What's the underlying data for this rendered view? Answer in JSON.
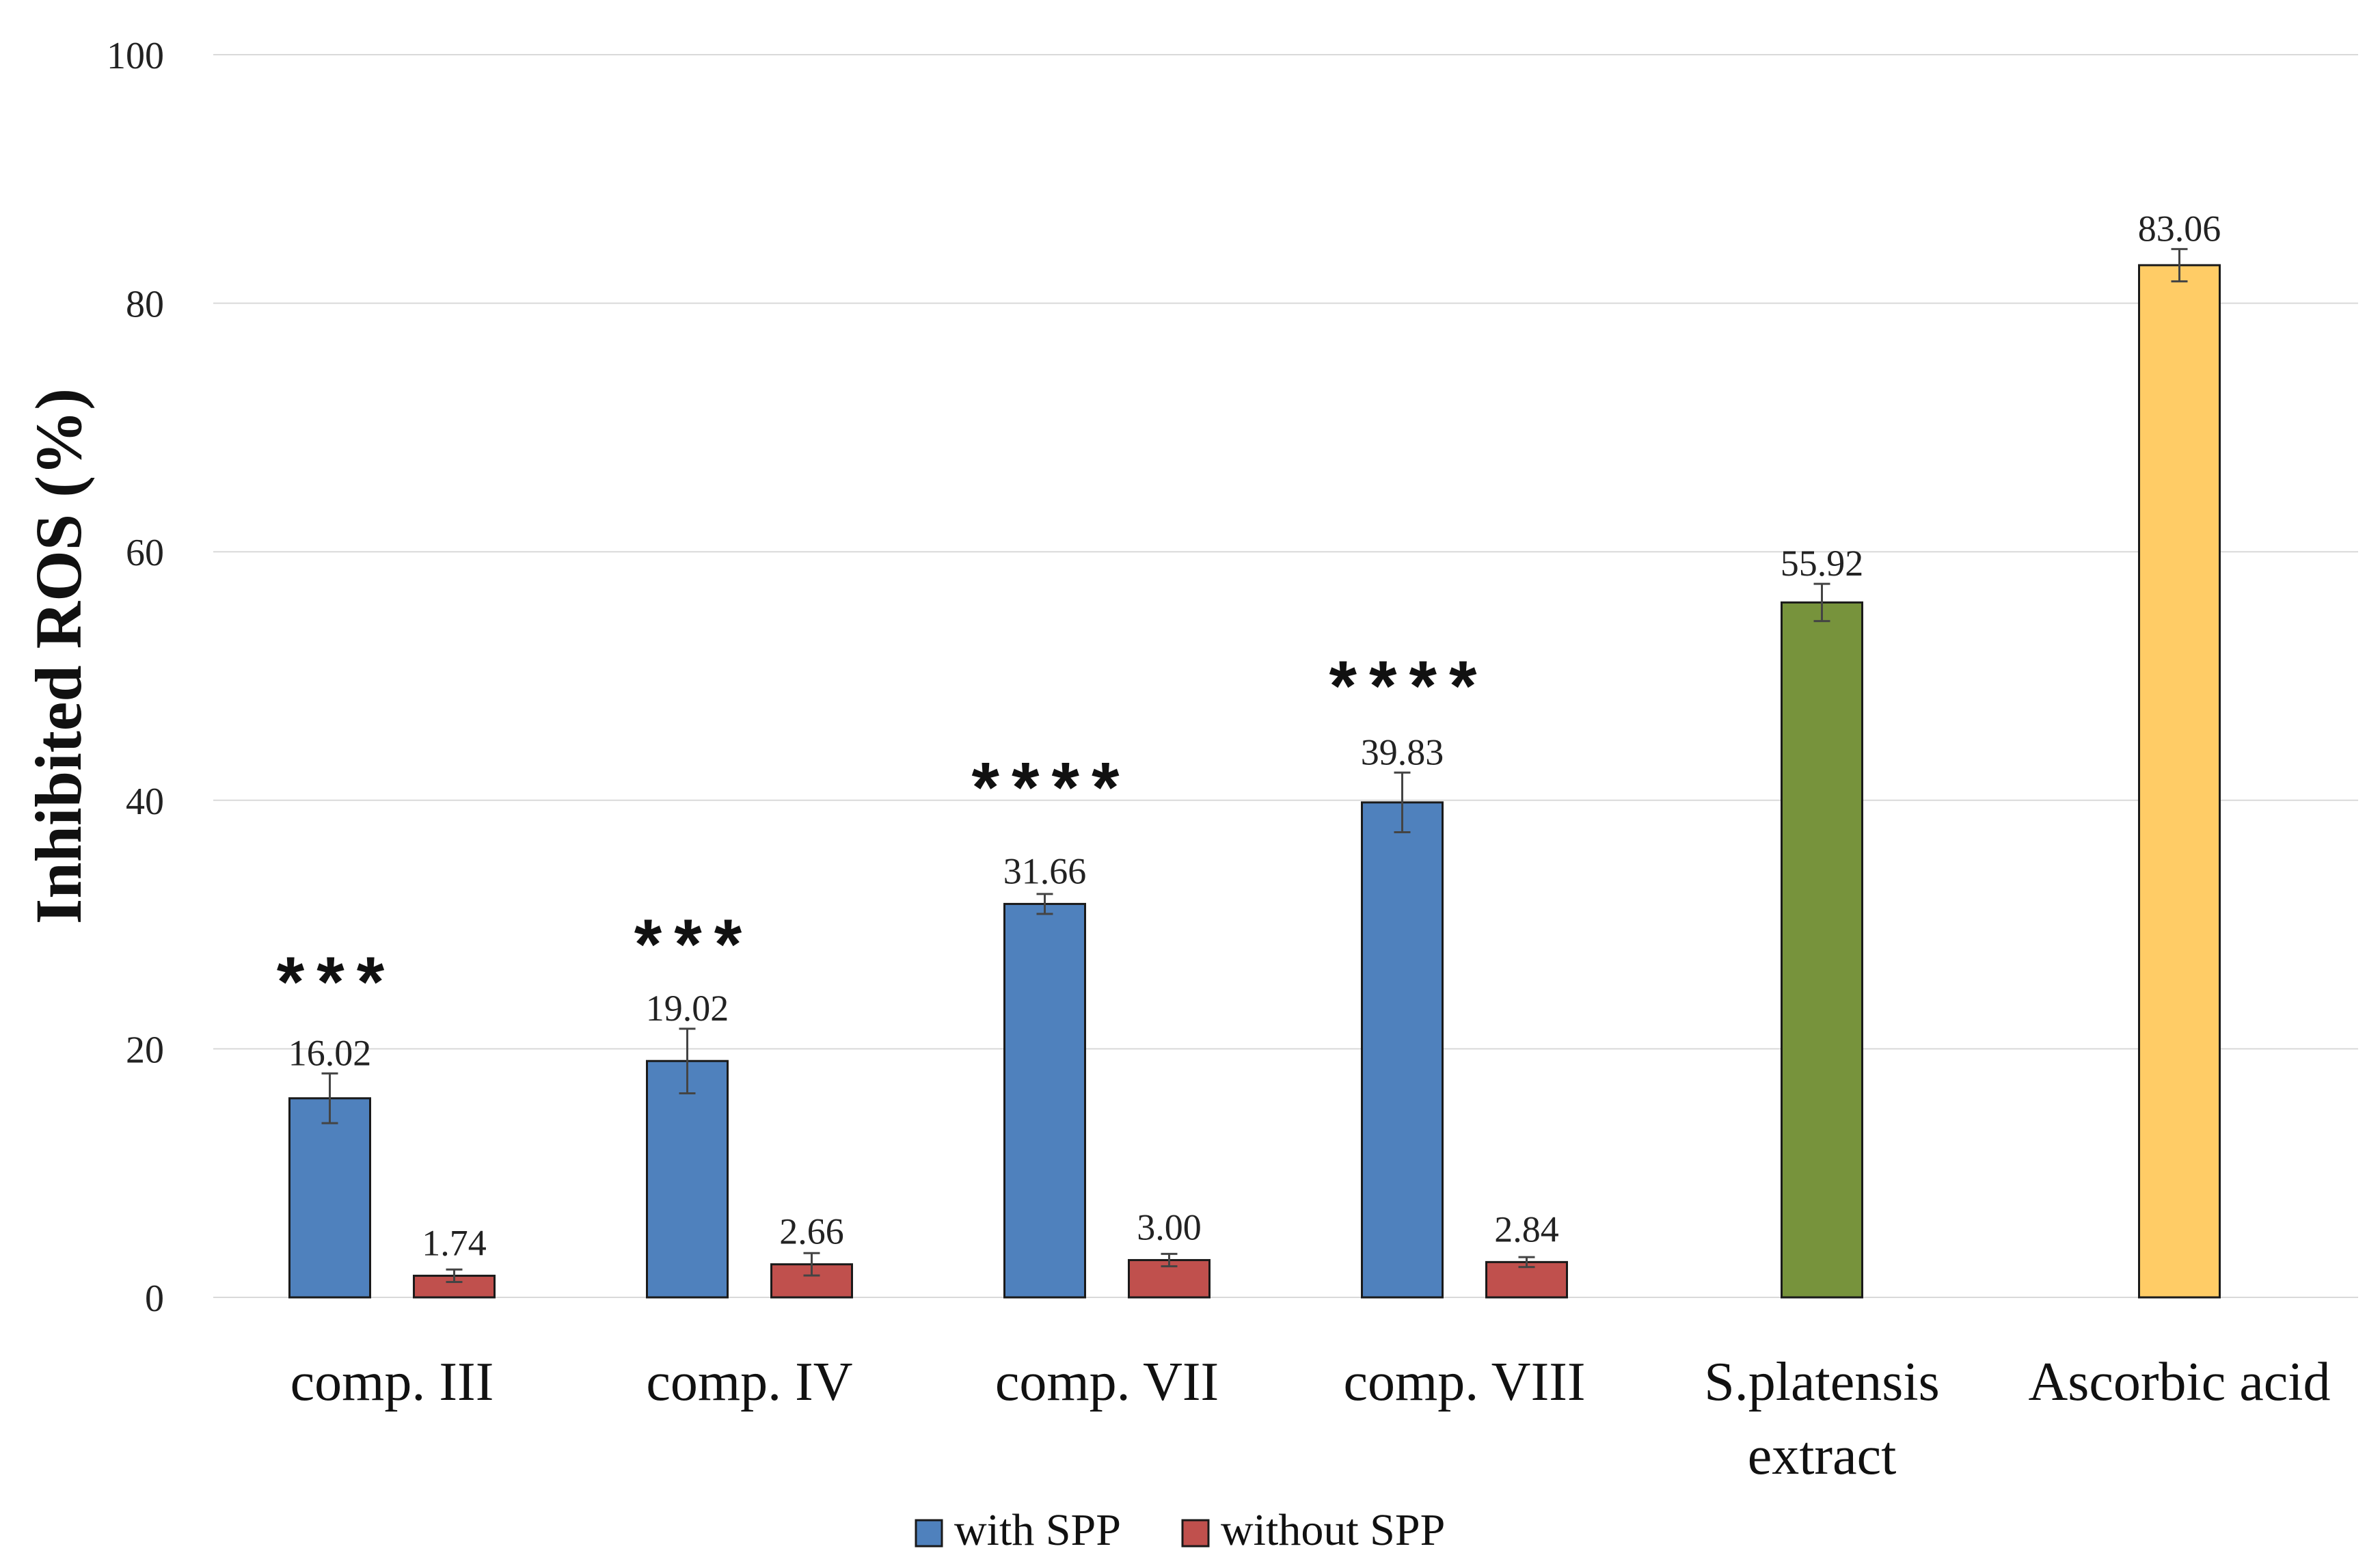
{
  "chart_data": {
    "type": "bar",
    "title": "",
    "xlabel": "",
    "ylabel": "Inhibited ROS (%)",
    "ylim": [
      0,
      100
    ],
    "yticks": [
      0,
      20,
      40,
      60,
      80,
      100
    ],
    "grid": true,
    "legend_position": "bottom",
    "categories": [
      {
        "lines": [
          "comp. III"
        ]
      },
      {
        "lines": [
          "comp. IV"
        ]
      },
      {
        "lines": [
          "comp. VII"
        ]
      },
      {
        "lines": [
          "comp. VIII"
        ]
      },
      {
        "lines": [
          "S.platensis",
          "extract"
        ]
      },
      {
        "lines": [
          "Ascorbic acid"
        ]
      }
    ],
    "series": [
      {
        "name": "with SPP",
        "color": "#4F81BD",
        "values": [
          16.02,
          19.02,
          31.66,
          39.83,
          null,
          null
        ],
        "labels": [
          "16.02",
          "19.02",
          "31.66",
          "39.83",
          null,
          null
        ],
        "errors": [
          2.0,
          2.6,
          0.8,
          2.4,
          null,
          null
        ]
      },
      {
        "name": "without SPP",
        "color": "#C0504D",
        "values": [
          1.74,
          2.66,
          3.0,
          2.84,
          null,
          null
        ],
        "labels": [
          "1.74",
          "2.66",
          "3.00",
          "2.84",
          null,
          null
        ],
        "errors": [
          0.5,
          0.9,
          0.5,
          0.4,
          null,
          null
        ]
      }
    ],
    "single_bars": [
      {
        "category_index": 4,
        "value": 55.92,
        "label": "55.92",
        "error": 1.5,
        "color": "#77933C"
      },
      {
        "category_index": 5,
        "value": 83.06,
        "label": "83.06",
        "error": 1.3,
        "color": "#FFCC66"
      }
    ],
    "significance": [
      "***",
      "***",
      "****",
      "****",
      null,
      null
    ],
    "legend": [
      {
        "name": "with SPP",
        "color": "#4F81BD"
      },
      {
        "name": "without SPP",
        "color": "#C0504D"
      }
    ]
  }
}
